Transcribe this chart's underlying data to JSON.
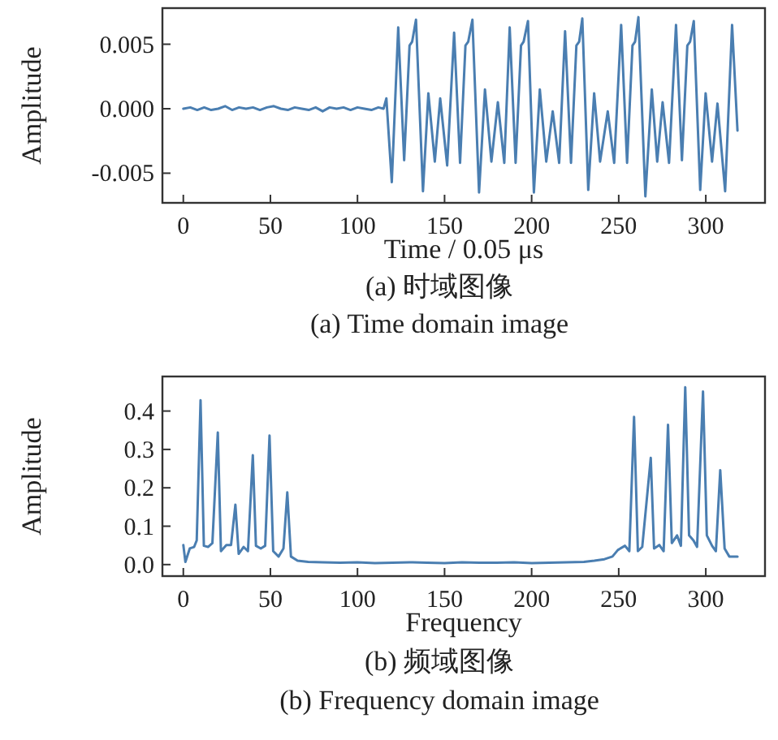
{
  "chart_data": [
    {
      "type": "line",
      "xlabel": "Time / 0.05 μs",
      "ylabel": "Amplitude",
      "annotations": [
        "(a) 时域图像",
        "(a) Time domain image"
      ],
      "xlim": [
        -12,
        334
      ],
      "ylim": [
        -0.0073,
        0.0078
      ],
      "xticks": [
        0,
        50,
        100,
        150,
        200,
        250,
        300
      ],
      "yticks": [
        {
          "value": -0.005,
          "label": "-0.005"
        },
        {
          "value": 0,
          "label": "0.000"
        },
        {
          "value": 0.005,
          "label": "0.005"
        }
      ],
      "series": [
        {
          "color": "#4a7eb1",
          "x": [
            0,
            4,
            8,
            12,
            16,
            20,
            24,
            28,
            32,
            36,
            40,
            44,
            48,
            52,
            56,
            60,
            64,
            68,
            72,
            76,
            80,
            84,
            88,
            92,
            96,
            100,
            104,
            108,
            112,
            115,
            116.6,
            119.7,
            123.4,
            126.8,
            129.9,
            131.4,
            133.6,
            137.6,
            140.7,
            144.4,
            147.5,
            151.5,
            155.5,
            158.9,
            162.0,
            163.6,
            166.0,
            169.8,
            173.2,
            176.9,
            180.6,
            184.3,
            187.4,
            190.8,
            193.9,
            195.4,
            197.9,
            201.3,
            204.7,
            208.4,
            212.1,
            215.8,
            219.2,
            222.6,
            225.7,
            227.3,
            229.1,
            232.5,
            235.9,
            239.3,
            243.7,
            247.4,
            251.4,
            254.8,
            257.9,
            259.4,
            261.3,
            265.3,
            269.0,
            272.1,
            275.2,
            278.9,
            282.9,
            286.3,
            289.4,
            291.0,
            293.1,
            296.8,
            299.9,
            303.6,
            306.7,
            311.1,
            315.1,
            318.2
          ],
          "values": [
            0.0,
            0.0001,
            -0.0001,
            0.0001,
            -0.0001,
            0.0,
            0.0002,
            -0.0001,
            0.0001,
            0.0,
            0.0001,
            -0.0001,
            0.0001,
            0.0002,
            0.0,
            -0.0001,
            0.0001,
            0.0,
            -0.0001,
            0.0001,
            -0.0002,
            0.0001,
            0.0,
            0.0001,
            -0.0001,
            0.0001,
            0.0,
            -0.0001,
            0.0001,
            0.0,
            0.0008,
            -0.0057,
            0.0063,
            -0.004,
            0.0049,
            0.0052,
            0.0069,
            -0.0064,
            0.0012,
            -0.0041,
            0.0008,
            -0.0044,
            0.0059,
            -0.0042,
            0.0049,
            0.0052,
            0.0069,
            -0.0065,
            0.0015,
            -0.0041,
            0.0005,
            -0.0042,
            0.0063,
            -0.0042,
            0.0049,
            0.0052,
            0.0068,
            -0.0065,
            0.0015,
            -0.0041,
            -0.0002,
            -0.0042,
            0.006,
            -0.0042,
            0.0049,
            0.0052,
            0.007,
            -0.0063,
            0.0012,
            -0.0041,
            -0.0002,
            -0.0042,
            0.0065,
            -0.0042,
            0.0049,
            0.0052,
            0.0071,
            -0.0068,
            0.0015,
            -0.0041,
            0.0005,
            -0.0042,
            0.0065,
            -0.004,
            0.0049,
            0.0052,
            0.0068,
            -0.0063,
            0.0012,
            -0.0041,
            0.0004,
            -0.0064,
            0.0065,
            -0.0017
          ]
        }
      ]
    },
    {
      "type": "line",
      "xlabel": "Frequency",
      "ylabel": "Amplitude",
      "annotations": [
        "(b) 频域图像",
        "(b) Frequency domain image"
      ],
      "xlim": [
        -12,
        334
      ],
      "ylim": [
        -0.03,
        0.49
      ],
      "xticks": [
        0,
        50,
        100,
        150,
        200,
        250,
        300
      ],
      "yticks": [
        {
          "value": 0,
          "label": "0.0"
        },
        {
          "value": 0.1,
          "label": "0.1"
        },
        {
          "value": 0.2,
          "label": "0.2"
        },
        {
          "value": 0.3,
          "label": "0.3"
        },
        {
          "value": 0.4,
          "label": "0.4"
        }
      ],
      "series": [
        {
          "color": "#4a7eb1",
          "x": [
            0,
            1.2,
            3.7,
            6.2,
            7.7,
            9.9,
            11.8,
            14.2,
            16.7,
            19.8,
            21.6,
            24.7,
            27.4,
            29.9,
            31.8,
            34.6,
            37.1,
            39.9,
            41.7,
            44.5,
            47.0,
            49.5,
            51.6,
            54.7,
            57.5,
            59.7,
            61.8,
            65.6,
            71.7,
            80,
            90,
            100,
            110,
            120,
            130,
            140,
            150,
            160,
            170,
            180,
            190,
            200,
            210,
            220,
            230,
            236,
            241.8,
            246.4,
            249.5,
            253.6,
            256.1,
            258.8,
            261.0,
            263.5,
            268.4,
            270.3,
            273.3,
            275.8,
            278.3,
            280.5,
            283.5,
            285.7,
            288.2,
            290.4,
            292.9,
            295.0,
            298.4,
            300.6,
            303.6,
            305.8,
            308.3,
            310.8,
            313.5,
            318.2
          ],
          "values": [
            0.051,
            0.007,
            0.042,
            0.046,
            0.063,
            0.428,
            0.049,
            0.046,
            0.056,
            0.344,
            0.035,
            0.051,
            0.051,
            0.156,
            0.028,
            0.046,
            0.035,
            0.285,
            0.049,
            0.042,
            0.049,
            0.336,
            0.035,
            0.021,
            0.042,
            0.188,
            0.021,
            0.01,
            0.007,
            0.006,
            0.005,
            0.006,
            0.004,
            0.005,
            0.006,
            0.005,
            0.004,
            0.006,
            0.005,
            0.005,
            0.006,
            0.004,
            0.005,
            0.006,
            0.007,
            0.01,
            0.014,
            0.021,
            0.038,
            0.049,
            0.035,
            0.385,
            0.035,
            0.046,
            0.278,
            0.042,
            0.051,
            0.035,
            0.364,
            0.056,
            0.076,
            0.049,
            0.462,
            0.076,
            0.063,
            0.046,
            0.451,
            0.076,
            0.049,
            0.035,
            0.246,
            0.042,
            0.021,
            0.021
          ]
        }
      ]
    }
  ]
}
